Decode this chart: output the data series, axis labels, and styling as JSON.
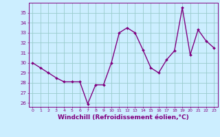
{
  "x": [
    0,
    1,
    2,
    3,
    4,
    5,
    6,
    7,
    8,
    9,
    10,
    11,
    12,
    13,
    14,
    15,
    16,
    17,
    18,
    19,
    20,
    21,
    22,
    23
  ],
  "y": [
    30.0,
    29.5,
    29.0,
    28.5,
    28.1,
    28.1,
    28.1,
    25.9,
    27.8,
    27.8,
    30.0,
    33.0,
    33.5,
    33.0,
    31.3,
    29.5,
    29.0,
    30.3,
    31.2,
    35.5,
    30.8,
    33.3,
    32.2,
    31.5
  ],
  "line_color": "#800080",
  "marker": "D",
  "marker_size": 2.0,
  "linewidth": 1.0,
  "bg_color": "#cceeff",
  "grid_color": "#99cccc",
  "xlabel": "Windchill (Refroidissement éolien,°C)",
  "xlabel_fontsize": 6.5,
  "xlabel_color": "#800080",
  "ylabel_ticks": [
    26,
    27,
    28,
    29,
    30,
    31,
    32,
    33,
    34,
    35
  ],
  "xticks": [
    0,
    1,
    2,
    3,
    4,
    5,
    6,
    7,
    8,
    9,
    10,
    11,
    12,
    13,
    14,
    15,
    16,
    17,
    18,
    19,
    20,
    21,
    22,
    23
  ],
  "ylim": [
    25.6,
    36.0
  ],
  "xlim": [
    -0.5,
    23.5
  ]
}
